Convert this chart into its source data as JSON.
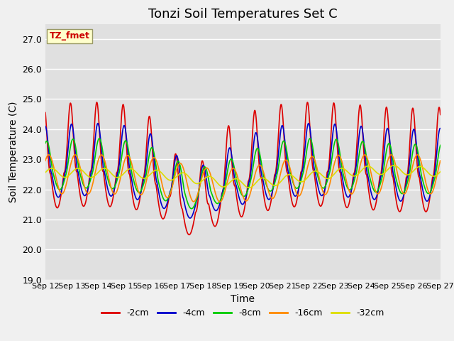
{
  "title": "Tonzi Soil Temperatures Set C",
  "xlabel": "Time",
  "ylabel": "Soil Temperature (C)",
  "ylim": [
    19.0,
    27.5
  ],
  "yticks": [
    19.0,
    20.0,
    21.0,
    22.0,
    23.0,
    24.0,
    25.0,
    26.0,
    27.0
  ],
  "xlim_days": [
    12,
    27
  ],
  "xtick_days": [
    12,
    13,
    14,
    15,
    16,
    17,
    18,
    19,
    20,
    21,
    22,
    23,
    24,
    25,
    26,
    27
  ],
  "colors": {
    "-2cm": "#dd0000",
    "-4cm": "#0000cc",
    "-8cm": "#00cc00",
    "-16cm": "#ff8800",
    "-32cm": "#dddd00"
  },
  "legend_labels": [
    "-2cm",
    "-4cm",
    "-8cm",
    "-16cm",
    "-32cm"
  ],
  "annotation_text": "TZ_fmet",
  "annotation_color": "#cc0000",
  "annotation_bg": "#ffffcc",
  "annotation_edge": "#999966",
  "fig_facecolor": "#f0f0f0",
  "plot_facecolor": "#e0e0e0",
  "grid_color": "#ffffff",
  "lw": 1.2,
  "title_fontsize": 13,
  "label_fontsize": 10,
  "tick_fontsize": 9
}
